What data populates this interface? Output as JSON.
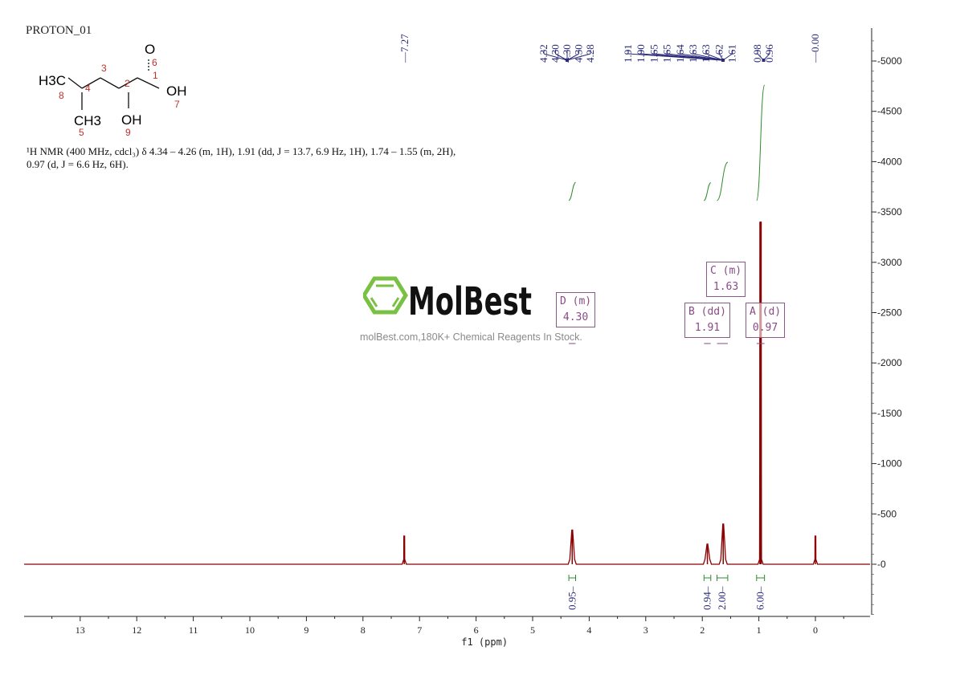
{
  "title": "PROTON_01",
  "description": "¹H NMR (400 MHz, cdcl₃) δ 4.34 – 4.26 (m, 1H), 1.91 (dd, J = 13.7, 6.9 Hz, 1H), 1.74 – 1.55 (m, 2H), 0.97 (d, J = 6.6 Hz, 6H).",
  "structure": {
    "groups": {
      "h3c": "H3C",
      "ch3": "CH3",
      "oh_acid": "OH",
      "oh_alpha": "OH",
      "o": "O"
    },
    "atom_numbers": [
      "1",
      "2",
      "3",
      "4",
      "5",
      "6",
      "7",
      "8",
      "9"
    ]
  },
  "watermark": {
    "brand": "MolBest",
    "tagline": "molBest.com,180K+ Chemical Reagents In Stock.",
    "brand_color": "#7ac143"
  },
  "chart_data": {
    "type": "line",
    "xlabel": "f1 (ppm)",
    "ylabel": "",
    "xlim": [
      14,
      -1
    ],
    "x_reversed": true,
    "ylim": [
      -500,
      5300
    ],
    "x_ticks": [
      "13",
      "12",
      "11",
      "10",
      "9",
      "8",
      "7",
      "6",
      "5",
      "4",
      "3",
      "2",
      "1",
      "0"
    ],
    "y_ticks": [
      "0",
      "500",
      "1000",
      "1500",
      "2000",
      "2500",
      "3000",
      "3500",
      "4000",
      "4500",
      "5000"
    ],
    "grid": false,
    "colors": {
      "spectrum": "#8b0000",
      "integral": "#2e8b2e",
      "peak_label": "#2a2a7a",
      "multiplet": "#8a4a86"
    },
    "peaks": [
      {
        "ppm": 7.27,
        "height": 280
      },
      {
        "ppm": 4.3,
        "height": 340
      },
      {
        "ppm": 1.91,
        "height": 200
      },
      {
        "ppm": 1.63,
        "height": 400
      },
      {
        "ppm": 0.97,
        "height": 3400
      },
      {
        "ppm": 0.0,
        "height": 280
      }
    ],
    "peak_label_groups": [
      {
        "labels": [
          "7.27"
        ]
      },
      {
        "labels": [
          "4.32",
          "4.30",
          "4.30",
          "4.30",
          "4.28"
        ]
      },
      {
        "labels": [
          "1.91",
          "1.90",
          "1.65",
          "1.65",
          "1.64",
          "1.63",
          "1.63",
          "1.62",
          "1.61"
        ]
      },
      {
        "labels": [
          "0.98",
          "0.96"
        ]
      },
      {
        "labels": [
          "0.00"
        ]
      }
    ],
    "integrals": [
      {
        "from": 4.36,
        "to": 4.24,
        "value": "0.95"
      },
      {
        "from": 1.97,
        "to": 1.85,
        "value": "0.94"
      },
      {
        "from": 1.74,
        "to": 1.55,
        "value": "2.00"
      },
      {
        "from": 1.04,
        "to": 0.9,
        "value": "6.00"
      }
    ],
    "multiplets": [
      {
        "id": "D",
        "type": "(m)",
        "shift": "4.30"
      },
      {
        "id": "B",
        "type": "(dd)",
        "shift": "1.91"
      },
      {
        "id": "C",
        "type": "(m)",
        "shift": "1.63"
      },
      {
        "id": "A",
        "type": "(d)",
        "shift": "0.97"
      }
    ]
  }
}
